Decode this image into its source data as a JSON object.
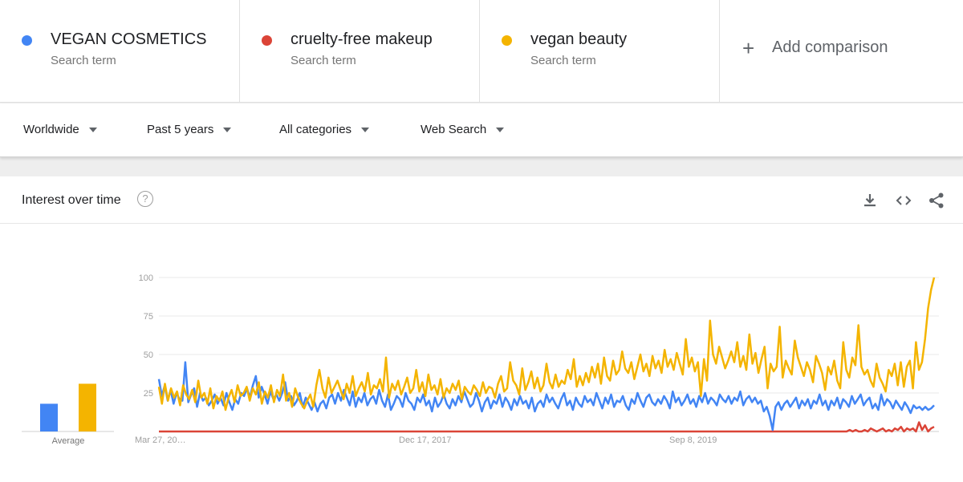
{
  "terms": [
    {
      "name": "VEGAN COSMETICS",
      "sub": "Search term",
      "color": "#4285f4"
    },
    {
      "name": "cruelty-free makeup",
      "sub": "Search term",
      "color": "#db4437"
    },
    {
      "name": "vegan beauty",
      "sub": "Search term",
      "color": "#f4b400"
    }
  ],
  "add_comparison": "Add comparison",
  "filters": {
    "region": "Worldwide",
    "period": "Past 5 years",
    "category": "All categories",
    "search_type": "Web Search"
  },
  "card": {
    "title": "Interest over time",
    "help": "?",
    "icons": [
      "download-icon",
      "embed-icon",
      "share-icon"
    ]
  },
  "chart_data": {
    "type": "line",
    "ylim": [
      0,
      100
    ],
    "yticks": [
      25,
      50,
      75,
      100
    ],
    "xticks": [
      "Mar 27, 20…",
      "Dec 17, 2017",
      "Sep 8, 2019"
    ],
    "average_label": "Average",
    "averages": [
      {
        "name": "VEGAN COSMETICS",
        "value": 18
      },
      {
        "name": "cruelty-free makeup",
        "value": 0
      },
      {
        "name": "vegan beauty",
        "value": 31
      }
    ],
    "series": [
      {
        "name": "VEGAN COSMETICS",
        "color": "#4285f4",
        "values": [
          34,
          23,
          30,
          20,
          27,
          18,
          25,
          21,
          20,
          45,
          19,
          24,
          28,
          16,
          25,
          20,
          22,
          17,
          20,
          24,
          18,
          22,
          17,
          25,
          19,
          14,
          21,
          18,
          25,
          23,
          28,
          22,
          30,
          36,
          22,
          29,
          24,
          18,
          26,
          21,
          24,
          20,
          25,
          32,
          20,
          23,
          17,
          20,
          25,
          16,
          22,
          18,
          14,
          19,
          13,
          18,
          20,
          15,
          22,
          24,
          18,
          25,
          20,
          27,
          22,
          17,
          26,
          16,
          22,
          19,
          25,
          17,
          21,
          23,
          18,
          27,
          20,
          16,
          24,
          14,
          18,
          23,
          21,
          16,
          25,
          20,
          18,
          14,
          22,
          19,
          24,
          17,
          20,
          13,
          22,
          16,
          19,
          24,
          18,
          15,
          21,
          17,
          23,
          19,
          26,
          21,
          16,
          18,
          25,
          20,
          13,
          19,
          22,
          15,
          20,
          18,
          24,
          16,
          22,
          19,
          14,
          21,
          17,
          23,
          18,
          20,
          15,
          22,
          13,
          18,
          20,
          16,
          24,
          19,
          22,
          18,
          15,
          21,
          25,
          17,
          20,
          14,
          22,
          18,
          16,
          23,
          19,
          21,
          17,
          25,
          20,
          15,
          22,
          18,
          24,
          16,
          20,
          19,
          23,
          17,
          14,
          21,
          18,
          25,
          20,
          16,
          22,
          24,
          19,
          17,
          21,
          18,
          23,
          20,
          15,
          26,
          19,
          22,
          17,
          20,
          24,
          18,
          21,
          16,
          23,
          19,
          25,
          18,
          22,
          20,
          17,
          24,
          21,
          19,
          23,
          18,
          22,
          20,
          26,
          17,
          21,
          23,
          19,
          22,
          18,
          20,
          13,
          16,
          10,
          1,
          16,
          19,
          14,
          18,
          20,
          16,
          19,
          22,
          15,
          20,
          17,
          21,
          15,
          20,
          18,
          24,
          17,
          20,
          14,
          20,
          17,
          22,
          15,
          21,
          19,
          16,
          23,
          18,
          21,
          24,
          17,
          20,
          22,
          15,
          18,
          14,
          24,
          17,
          21,
          19,
          15,
          20,
          17,
          14,
          19,
          16,
          12,
          17,
          15,
          16,
          14,
          16,
          14,
          15,
          17
        ]
      },
      {
        "name": "cruelty-free makeup",
        "color": "#db4437",
        "values": [
          0,
          0,
          0,
          0,
          0,
          0,
          0,
          0,
          0,
          0,
          0,
          0,
          0,
          0,
          0,
          0,
          0,
          0,
          0,
          0,
          0,
          0,
          0,
          0,
          0,
          0,
          0,
          0,
          0,
          0,
          0,
          0,
          0,
          0,
          0,
          0,
          0,
          0,
          0,
          0,
          0,
          0,
          0,
          0,
          0,
          0,
          0,
          0,
          0,
          0,
          0,
          0,
          0,
          0,
          0,
          0,
          0,
          0,
          0,
          0,
          0,
          0,
          0,
          0,
          0,
          0,
          0,
          0,
          0,
          0,
          0,
          0,
          0,
          0,
          0,
          0,
          0,
          0,
          0,
          0,
          0,
          0,
          0,
          0,
          0,
          0,
          0,
          0,
          0,
          0,
          0,
          0,
          0,
          0,
          0,
          0,
          0,
          0,
          0,
          0,
          0,
          0,
          0,
          0,
          0,
          0,
          0,
          0,
          0,
          0,
          0,
          0,
          0,
          0,
          0,
          0,
          0,
          0,
          0,
          0,
          0,
          0,
          0,
          0,
          0,
          0,
          0,
          0,
          0,
          0,
          0,
          0,
          0,
          0,
          0,
          0,
          0,
          0,
          0,
          0,
          0,
          0,
          0,
          0,
          0,
          0,
          0,
          0,
          0,
          0,
          0,
          0,
          0,
          0,
          0,
          0,
          0,
          0,
          0,
          0,
          0,
          0,
          0,
          0,
          0,
          0,
          0,
          0,
          0,
          0,
          0,
          0,
          0,
          0,
          0,
          0,
          0,
          0,
          0,
          0,
          0,
          0,
          0,
          0,
          0,
          0,
          0,
          0,
          0,
          0,
          0,
          0,
          0,
          0,
          0,
          0,
          0,
          0,
          0,
          0,
          0,
          0,
          0,
          0,
          0,
          0,
          0,
          0,
          0,
          0,
          0,
          0,
          0,
          0,
          0,
          0,
          0,
          0,
          0,
          0,
          0,
          0,
          0,
          0,
          0,
          0,
          0,
          0,
          0,
          1,
          0,
          1,
          0,
          0,
          1,
          0,
          2,
          1,
          0,
          1,
          2,
          0,
          1,
          0,
          2,
          1,
          3,
          0,
          2,
          1,
          2,
          0,
          6,
          1,
          4,
          0,
          2,
          3
        ]
      },
      {
        "name": "vegan beauty",
        "color": "#f4b400",
        "values": [
          29,
          18,
          31,
          20,
          28,
          22,
          26,
          17,
          30,
          24,
          21,
          27,
          19,
          33,
          22,
          25,
          18,
          28,
          15,
          23,
          20,
          26,
          14,
          22,
          27,
          19,
          30,
          23,
          25,
          29,
          20,
          28,
          24,
          32,
          18,
          26,
          22,
          30,
          19,
          27,
          23,
          37,
          20,
          25,
          16,
          28,
          22,
          18,
          15,
          20,
          24,
          16,
          30,
          40,
          28,
          22,
          35,
          25,
          29,
          33,
          27,
          21,
          31,
          25,
          36,
          23,
          28,
          32,
          26,
          38,
          24,
          30,
          28,
          34,
          26,
          48,
          22,
          31,
          27,
          33,
          24,
          29,
          35,
          25,
          28,
          40,
          26,
          32,
          23,
          37,
          27,
          30,
          24,
          34,
          22,
          28,
          25,
          31,
          27,
          33,
          21,
          29,
          26,
          24,
          30,
          27,
          23,
          32,
          25,
          29,
          28,
          22,
          31,
          36,
          26,
          28,
          45,
          33,
          30,
          24,
          41,
          27,
          32,
          39,
          28,
          35,
          26,
          30,
          44,
          32,
          28,
          37,
          29,
          33,
          31,
          40,
          34,
          47,
          29,
          36,
          30,
          38,
          32,
          42,
          35,
          44,
          31,
          48,
          36,
          33,
          46,
          37,
          40,
          52,
          41,
          38,
          45,
          34,
          42,
          50,
          39,
          44,
          36,
          49,
          41,
          46,
          38,
          53,
          42,
          47,
          40,
          51,
          44,
          37,
          60,
          42,
          48,
          39,
          45,
          23,
          47,
          33,
          72,
          50,
          44,
          55,
          48,
          41,
          46,
          52,
          45,
          58,
          42,
          49,
          40,
          63,
          44,
          51,
          38,
          47,
          55,
          28,
          44,
          39,
          42,
          68,
          35,
          46,
          41,
          37,
          59,
          48,
          42,
          36,
          45,
          40,
          32,
          49,
          44,
          38,
          27,
          42,
          37,
          46,
          33,
          28,
          58,
          40,
          35,
          48,
          43,
          69,
          42,
          37,
          40,
          33,
          29,
          44,
          35,
          31,
          26,
          40,
          36,
          44,
          30,
          45,
          29,
          42,
          46,
          28,
          58,
          40,
          45,
          60,
          80,
          92,
          100
        ]
      }
    ]
  }
}
